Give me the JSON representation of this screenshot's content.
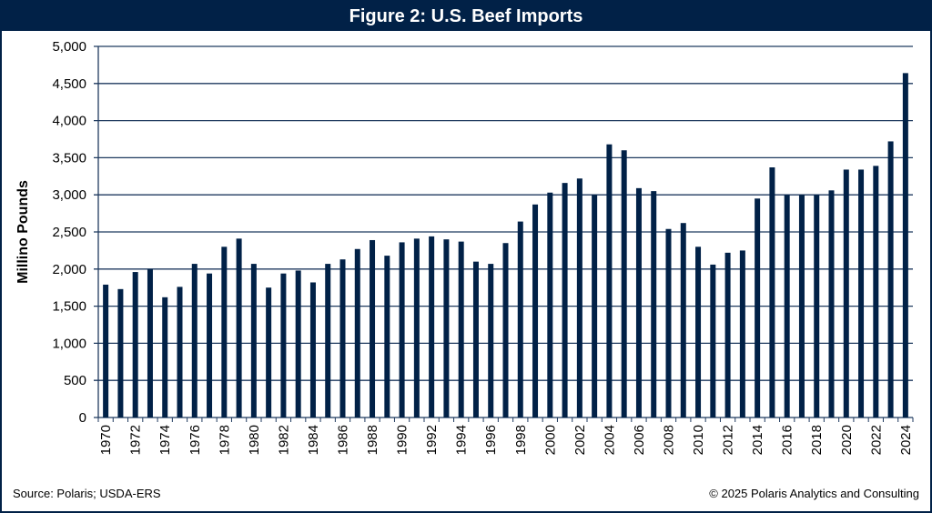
{
  "colors": {
    "header_bg": "#012147",
    "bar": "#012147",
    "grid": "#1f3a5f"
  },
  "footer": {
    "source": "Source: Polaris; USDA-ERS",
    "copyright": "© 2025 Polaris Analytics and Consulting"
  },
  "chart_data": {
    "type": "bar",
    "title": "Figure 2: U.S. Beef Imports",
    "xlabel": "",
    "ylabel": "Millino Pounds",
    "ylim": [
      0,
      5000
    ],
    "yticks": [
      0,
      500,
      1000,
      1500,
      2000,
      2500,
      3000,
      3500,
      4000,
      4500,
      5000
    ],
    "ytick_labels": [
      "0",
      "500",
      "1,000",
      "1,500",
      "2,000",
      "2,500",
      "3,000",
      "3,500",
      "4,000",
      "4,500",
      "5,000"
    ],
    "grid": true,
    "categories": [
      "1970",
      "1971",
      "1972",
      "1973",
      "1974",
      "1975",
      "1976",
      "1977",
      "1978",
      "1979",
      "1980",
      "1981",
      "1982",
      "1983",
      "1984",
      "1985",
      "1986",
      "1987",
      "1988",
      "1989",
      "1990",
      "1991",
      "1992",
      "1993",
      "1994",
      "1995",
      "1996",
      "1997",
      "1998",
      "1999",
      "2000",
      "2001",
      "2002",
      "2003",
      "2004",
      "2005",
      "2006",
      "2007",
      "2008",
      "2009",
      "2010",
      "2011",
      "2012",
      "2013",
      "2014",
      "2015",
      "2016",
      "2017",
      "2018",
      "2019",
      "2020",
      "2021",
      "2022",
      "2023",
      "2024"
    ],
    "xtick_labels": [
      "1970",
      "1972",
      "1974",
      "1976",
      "1978",
      "1980",
      "1982",
      "1984",
      "1986",
      "1988",
      "1990",
      "1992",
      "1994",
      "1996",
      "1998",
      "2000",
      "2002",
      "2004",
      "2006",
      "2008",
      "2010",
      "2012",
      "2014",
      "2016",
      "2018",
      "2020",
      "2022",
      "2024"
    ],
    "values": [
      1790,
      1730,
      1960,
      2000,
      1620,
      1760,
      2070,
      1940,
      2300,
      2410,
      2070,
      1750,
      1940,
      1980,
      1820,
      2070,
      2130,
      2270,
      2390,
      2180,
      2360,
      2410,
      2440,
      2400,
      2370,
      2100,
      2070,
      2350,
      2640,
      2870,
      3030,
      3160,
      3220,
      3000,
      3680,
      3600,
      3090,
      3050,
      2540,
      2620,
      2300,
      2060,
      2220,
      2250,
      2950,
      3370,
      3000,
      3000,
      3000,
      3060,
      3340,
      3340,
      3390,
      3720,
      4640
    ]
  }
}
